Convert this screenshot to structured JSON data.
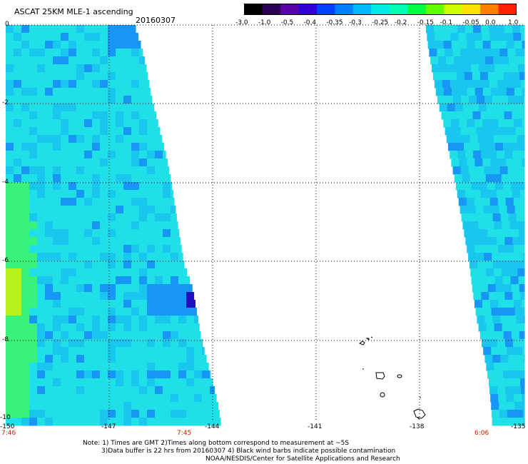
{
  "header": {
    "title": "ASCAT 25KM MLE-1 ascending",
    "date": "20160307"
  },
  "colorbar": {
    "labels": [
      "-3.0",
      "-1.0",
      "-0.5",
      "-0.4",
      "-0.35",
      "-0.3",
      "-0.25",
      "-0.2",
      "-0.15",
      "-0.1",
      "-0.05",
      "0.0",
      "1.0"
    ],
    "colors": [
      "#000000",
      "#2a0055",
      "#5a00a8",
      "#3000d8",
      "#0040ff",
      "#0080ff",
      "#00b8ff",
      "#00e8e8",
      "#00ffb0",
      "#00ff40",
      "#60ff00",
      "#d0ff00",
      "#ffe000",
      "#ff8000",
      "#ff2000"
    ]
  },
  "map": {
    "lat_labels": [
      "0",
      "-2",
      "-4",
      "-6",
      "-8",
      "-10"
    ],
    "lon_labels": [
      "-150",
      "-147",
      "-144",
      "-141",
      "-138",
      "-135"
    ],
    "pass_times": [
      "7:46",
      "7:45",
      "6:06"
    ],
    "colors": {
      "swath_base": "#1fe0e6",
      "swath_mid": "#19c6ee",
      "swath_blue": "#1796f5",
      "green": "#39f27a",
      "yellow_green": "#b9f21a",
      "deep_blue": "#2010c0",
      "grid": "#000000"
    }
  },
  "notes": [
    "Note: 1) Times are GMT 2)Times along bottom correspond to measurement at ~5S",
    "3)Data buffer is 22 hrs from 20160307 4) Black wind barbs indicate possible contamination",
    "NOAA/NESDIS/Center for Satellite Applications and Research"
  ]
}
